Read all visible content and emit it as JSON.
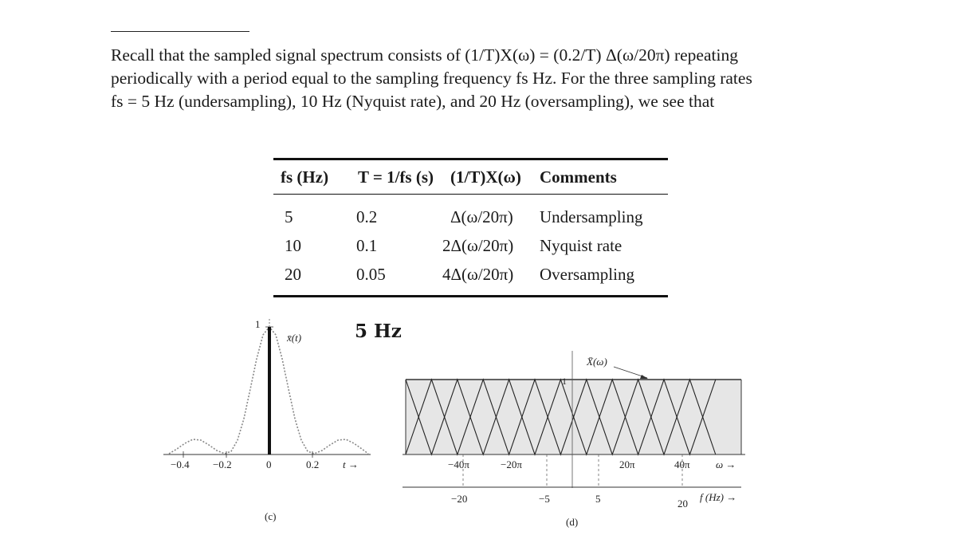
{
  "paragraph": {
    "line1": "Recall that the sampled signal spectrum consists of (1/T)X(ω) = (0.2/T) Δ(ω/20π) repeating",
    "line2": "periodically with a period equal to the sampling frequency fs Hz. For the three sampling rates",
    "line3": "fs = 5 Hz (undersampling), 10 Hz (Nyquist rate), and 20 Hz (oversampling), we see that"
  },
  "table": {
    "headers": [
      "fs (Hz)",
      "T = 1/fs (s)",
      "(1/T)X(ω)",
      "Comments"
    ],
    "rows": [
      {
        "fs": "5",
        "T": "0.2",
        "spectrum": "Δ(ω/20π)",
        "comment": "Undersampling"
      },
      {
        "fs": "10",
        "T": "0.1",
        "spectrum": "2Δ(ω/20π)",
        "comment": "Nyquist rate"
      },
      {
        "fs": "20",
        "T": "0.05",
        "spectrum": "4Δ(ω/20π)",
        "comment": "Oversampling"
      }
    ]
  },
  "overlay_label": "5 Hz",
  "figure_c": {
    "caption": "(c)",
    "curve_label": "x̄(t)",
    "peak_label": "1",
    "x_ticks": [
      "−0.4",
      "−0.2",
      "0",
      "0.2"
    ],
    "axis_var": "t →"
  },
  "figure_d": {
    "caption": "(d)",
    "curve_label": "X̄(ω)",
    "level_label": "1",
    "omega_ticks": [
      "−40π",
      "−20π",
      "20π",
      "40π"
    ],
    "omega_var": "ω →",
    "freq_ticks": [
      "−20",
      "−5",
      "5",
      "20"
    ],
    "freq_var": "f (Hz) →"
  }
}
